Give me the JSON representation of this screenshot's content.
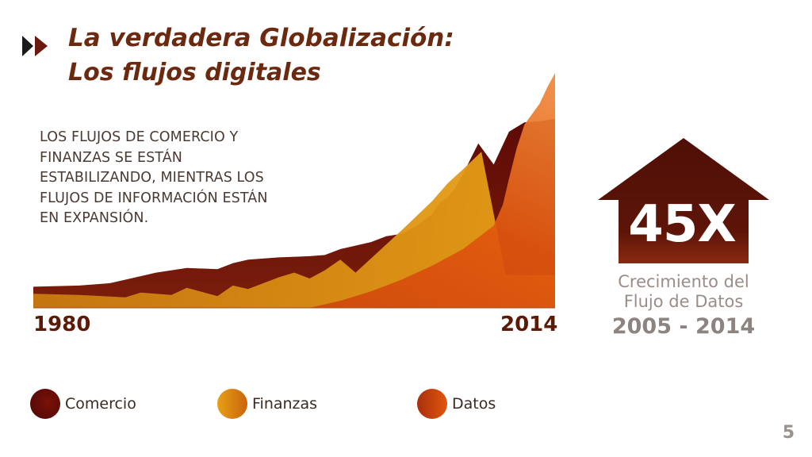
{
  "slide": {
    "title_line1": "La verdadera Globalización:",
    "title_line2": "Los flujos digitales",
    "description_lines": [
      "LOS FLUJOS DE COMERCIO Y",
      "FINANZAS SE ESTÁN",
      "ESTABILIZANDO, MIENTRAS LOS",
      "FLUJOS DE INFORMACIÓN ESTÁN",
      "EN EXPANSIÓN."
    ],
    "page_number": "5"
  },
  "highlight": {
    "value": "45X",
    "caption_line1": "Crecimiento del",
    "caption_line2": "Flujo de Datos",
    "period": "2005 - 2014"
  },
  "colors": {
    "title": "#6b2a10",
    "comercio": "#6b0f0a",
    "finanzas": "#e09a12",
    "datos": "#d4480e",
    "house": "#5e1508"
  },
  "chart_data": {
    "type": "area",
    "x_start_label": "1980",
    "x_end_label": "2014",
    "xlim": [
      1980,
      2014
    ],
    "ylim": [
      0,
      100
    ],
    "grid": false,
    "legend_position": "bottom",
    "series": [
      {
        "name": "Comercio",
        "color": "#6b0f0a",
        "x": [
          1980,
          1983,
          1985,
          1986,
          1988,
          1990,
          1992,
          1993,
          1994,
          1996,
          1998,
          1999,
          2000,
          2002,
          2003,
          2004,
          2005,
          2006,
          2006.5,
          2007,
          2007.5,
          2008,
          2009,
          2010,
          2011,
          2012,
          2013,
          2014
        ],
        "values": [
          9,
          9.5,
          10.5,
          12,
          15,
          17,
          16.5,
          19,
          20.5,
          21.5,
          22,
          22.5,
          25,
          28,
          30.5,
          31.5,
          35,
          40,
          45,
          47,
          51,
          57,
          70,
          61,
          75,
          79,
          79.5,
          80.5
        ]
      },
      {
        "name": "Finanzas",
        "color": "#e09a12",
        "x": [
          1980,
          1983,
          1986,
          1987,
          1989,
          1990,
          1992,
          1993,
          1994,
          1996,
          1997,
          1998,
          1999,
          2000,
          2001,
          2004,
          2006,
          2007,
          2008,
          2009.2,
          2010,
          2010.8,
          2011,
          2014
        ],
        "values": [
          6,
          5.5,
          4.5,
          6.5,
          5.5,
          8.5,
          5,
          9.5,
          8,
          13,
          15,
          12.5,
          16,
          20.5,
          15,
          33,
          45.5,
          53,
          59,
          66.5,
          40,
          14,
          14,
          14
        ]
      },
      {
        "name": "Datos",
        "color": "#d4480e",
        "x": [
          1980,
          1998,
          2000,
          2002,
          2004,
          2006,
          2008,
          2010,
          2010.6,
          2011,
          2011.5,
          2012,
          2013,
          2013.5,
          2014
        ],
        "values": [
          0,
          0,
          3,
          7,
          12,
          18,
          25,
          35,
          44,
          55,
          68,
          78,
          87,
          94,
          100
        ]
      }
    ]
  },
  "legend": {
    "items": [
      {
        "label": "Comercio"
      },
      {
        "label": "Finanzas"
      },
      {
        "label": "Datos"
      }
    ]
  }
}
